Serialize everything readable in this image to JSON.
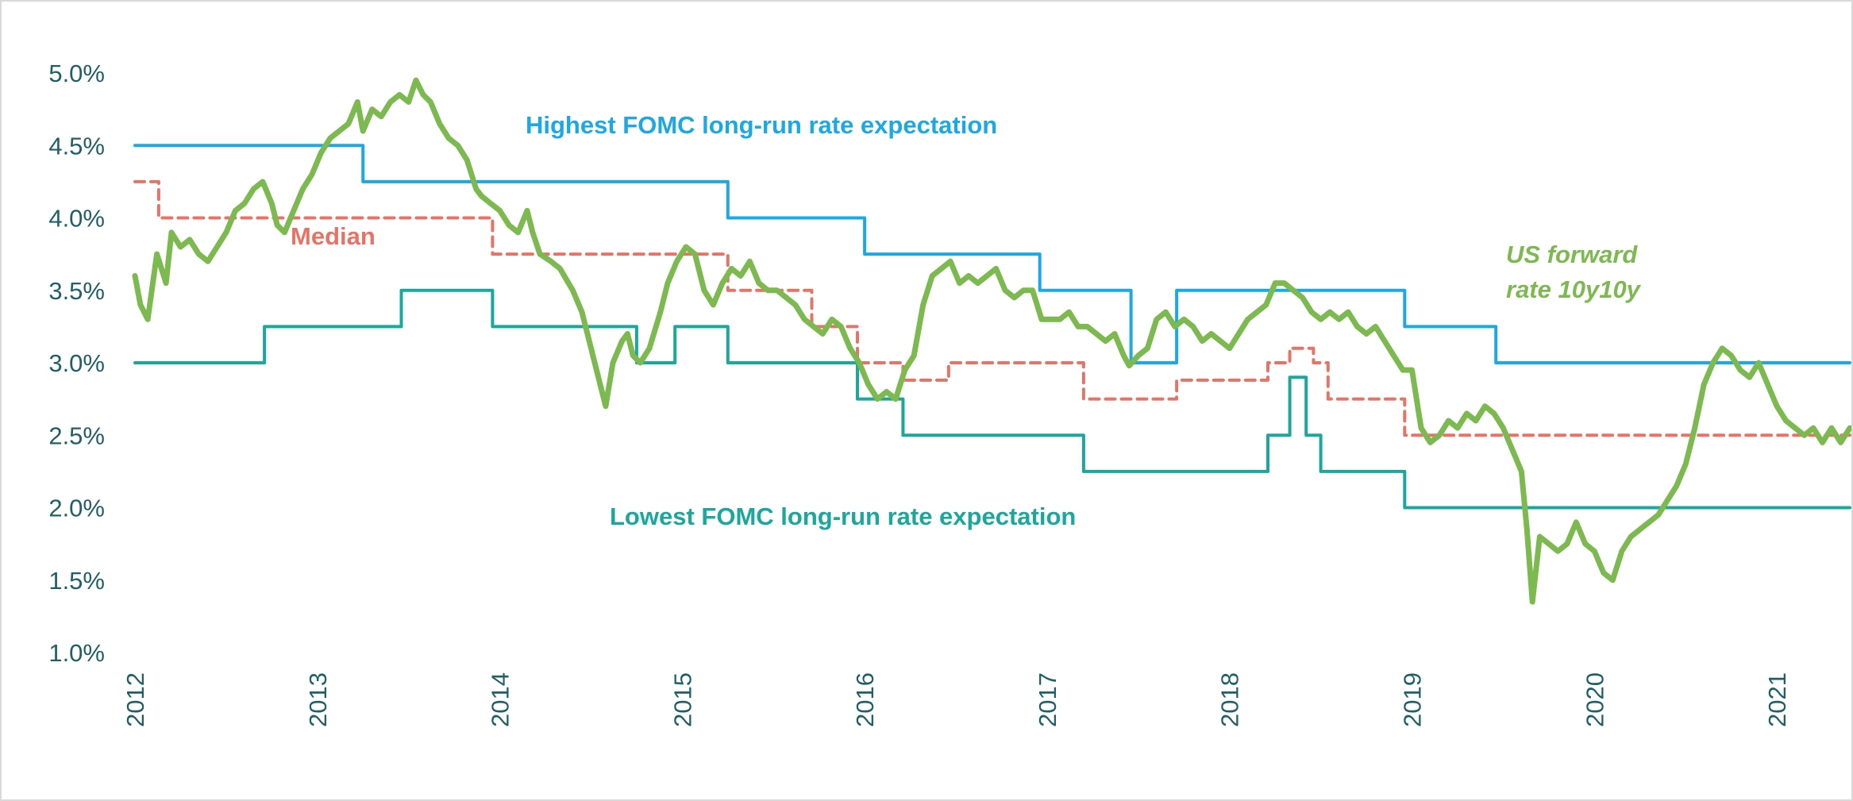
{
  "chart_data": {
    "type": "line",
    "title": "",
    "xlabel": "",
    "ylabel": "",
    "ylim": [
      1.0,
      5.0
    ],
    "xlim": [
      2012.0,
      2021.4
    ],
    "y_ticks": [
      "1.0%",
      "1.5%",
      "2.0%",
      "2.5%",
      "3.0%",
      "3.5%",
      "4.0%",
      "4.5%",
      "5.0%"
    ],
    "x_ticks": [
      "2012",
      "2013",
      "2014",
      "2015",
      "2016",
      "2017",
      "2018",
      "2019",
      "2020",
      "2021"
    ],
    "grid": false,
    "colors": {
      "highest": "#1ca8e3",
      "median": "#e67466",
      "lowest": "#1aa89c",
      "forward": "#7cb94f",
      "axis_text": "#1f5f66"
    },
    "annotations": {
      "highest": "Highest FOMC long-run rate expectation",
      "median": "Median",
      "lowest": "Lowest FOMC long-run rate expectation",
      "forward_line1": "US forward",
      "forward_line2": "rate 10y10y"
    },
    "series": [
      {
        "key": "highest",
        "style": "step",
        "points": [
          [
            2012.0,
            4.5
          ],
          [
            2013.25,
            4.5
          ],
          [
            2013.25,
            4.25
          ],
          [
            2015.25,
            4.25
          ],
          [
            2015.25,
            4.0
          ],
          [
            2016.0,
            4.0
          ],
          [
            2016.0,
            3.75
          ],
          [
            2016.96,
            3.75
          ],
          [
            2016.96,
            3.5
          ],
          [
            2017.46,
            3.5
          ],
          [
            2017.46,
            3.0
          ],
          [
            2017.71,
            3.0
          ],
          [
            2017.71,
            3.5
          ],
          [
            2018.46,
            3.5
          ],
          [
            2018.46,
            3.5
          ],
          [
            2018.96,
            3.5
          ],
          [
            2018.96,
            3.25
          ],
          [
            2019.46,
            3.25
          ],
          [
            2019.46,
            3.0
          ],
          [
            2021.4,
            3.0
          ]
        ]
      },
      {
        "key": "median",
        "style": "step",
        "points": [
          [
            2012.0,
            4.25
          ],
          [
            2012.13,
            4.25
          ],
          [
            2012.13,
            4.0
          ],
          [
            2013.96,
            4.0
          ],
          [
            2013.96,
            3.75
          ],
          [
            2015.25,
            3.75
          ],
          [
            2015.25,
            3.5
          ],
          [
            2015.71,
            3.5
          ],
          [
            2015.71,
            3.25
          ],
          [
            2015.96,
            3.25
          ],
          [
            2015.96,
            3.0
          ],
          [
            2016.21,
            3.0
          ],
          [
            2016.21,
            2.88
          ],
          [
            2016.46,
            2.88
          ],
          [
            2016.46,
            3.0
          ],
          [
            2017.2,
            3.0
          ],
          [
            2017.2,
            2.75
          ],
          [
            2017.71,
            2.75
          ],
          [
            2017.71,
            2.88
          ],
          [
            2018.21,
            2.88
          ],
          [
            2018.21,
            3.0
          ],
          [
            2018.33,
            3.0
          ],
          [
            2018.33,
            3.1
          ],
          [
            2018.46,
            3.1
          ],
          [
            2018.46,
            3.0
          ],
          [
            2018.54,
            3.0
          ],
          [
            2018.54,
            2.75
          ],
          [
            2018.96,
            2.75
          ],
          [
            2018.96,
            2.5
          ],
          [
            2021.4,
            2.5
          ]
        ]
      },
      {
        "key": "lowest",
        "style": "step",
        "points": [
          [
            2012.0,
            3.0
          ],
          [
            2012.71,
            3.0
          ],
          [
            2012.71,
            3.25
          ],
          [
            2013.46,
            3.25
          ],
          [
            2013.46,
            3.5
          ],
          [
            2013.96,
            3.5
          ],
          [
            2013.96,
            3.25
          ],
          [
            2014.75,
            3.25
          ],
          [
            2014.75,
            3.0
          ],
          [
            2014.96,
            3.0
          ],
          [
            2014.96,
            3.25
          ],
          [
            2015.25,
            3.25
          ],
          [
            2015.25,
            3.0
          ],
          [
            2015.96,
            3.0
          ],
          [
            2015.96,
            2.75
          ],
          [
            2016.21,
            2.75
          ],
          [
            2016.21,
            2.5
          ],
          [
            2017.2,
            2.5
          ],
          [
            2017.2,
            2.25
          ],
          [
            2018.21,
            2.25
          ],
          [
            2018.21,
            2.5
          ],
          [
            2018.33,
            2.5
          ],
          [
            2018.33,
            2.9
          ],
          [
            2018.42,
            2.9
          ],
          [
            2018.42,
            2.5
          ],
          [
            2018.5,
            2.5
          ],
          [
            2018.5,
            2.25
          ],
          [
            2018.96,
            2.25
          ],
          [
            2018.96,
            2.0
          ],
          [
            2021.4,
            2.0
          ]
        ]
      },
      {
        "key": "forward",
        "style": "line",
        "points": [
          [
            2012.0,
            3.6
          ],
          [
            2012.03,
            3.4
          ],
          [
            2012.07,
            3.3
          ],
          [
            2012.12,
            3.75
          ],
          [
            2012.17,
            3.55
          ],
          [
            2012.2,
            3.9
          ],
          [
            2012.25,
            3.8
          ],
          [
            2012.3,
            3.85
          ],
          [
            2012.35,
            3.75
          ],
          [
            2012.4,
            3.7
          ],
          [
            2012.45,
            3.8
          ],
          [
            2012.5,
            3.9
          ],
          [
            2012.55,
            4.05
          ],
          [
            2012.6,
            4.1
          ],
          [
            2012.65,
            4.2
          ],
          [
            2012.7,
            4.25
          ],
          [
            2012.75,
            4.1
          ],
          [
            2012.78,
            3.95
          ],
          [
            2012.82,
            3.9
          ],
          [
            2012.87,
            4.05
          ],
          [
            2012.92,
            4.2
          ],
          [
            2012.97,
            4.3
          ],
          [
            2013.02,
            4.45
          ],
          [
            2013.07,
            4.55
          ],
          [
            2013.12,
            4.6
          ],
          [
            2013.17,
            4.65
          ],
          [
            2013.22,
            4.8
          ],
          [
            2013.25,
            4.6
          ],
          [
            2013.3,
            4.75
          ],
          [
            2013.35,
            4.7
          ],
          [
            2013.4,
            4.8
          ],
          [
            2013.45,
            4.85
          ],
          [
            2013.5,
            4.8
          ],
          [
            2013.54,
            4.95
          ],
          [
            2013.58,
            4.85
          ],
          [
            2013.62,
            4.8
          ],
          [
            2013.67,
            4.65
          ],
          [
            2013.72,
            4.55
          ],
          [
            2013.77,
            4.5
          ],
          [
            2013.82,
            4.4
          ],
          [
            2013.87,
            4.2
          ],
          [
            2013.9,
            4.15
          ],
          [
            2013.95,
            4.1
          ],
          [
            2014.0,
            4.05
          ],
          [
            2014.05,
            3.95
          ],
          [
            2014.1,
            3.9
          ],
          [
            2014.15,
            4.05
          ],
          [
            2014.18,
            3.9
          ],
          [
            2014.22,
            3.75
          ],
          [
            2014.28,
            3.7
          ],
          [
            2014.33,
            3.65
          ],
          [
            2014.4,
            3.5
          ],
          [
            2014.45,
            3.35
          ],
          [
            2014.48,
            3.2
          ],
          [
            2014.52,
            3.0
          ],
          [
            2014.55,
            2.85
          ],
          [
            2014.58,
            2.7
          ],
          [
            2014.62,
            3.0
          ],
          [
            2014.67,
            3.15
          ],
          [
            2014.7,
            3.2
          ],
          [
            2014.73,
            3.05
          ],
          [
            2014.77,
            3.0
          ],
          [
            2014.82,
            3.1
          ],
          [
            2014.88,
            3.35
          ],
          [
            2014.92,
            3.55
          ],
          [
            2014.97,
            3.7
          ],
          [
            2015.02,
            3.8
          ],
          [
            2015.07,
            3.75
          ],
          [
            2015.12,
            3.5
          ],
          [
            2015.17,
            3.4
          ],
          [
            2015.22,
            3.55
          ],
          [
            2015.27,
            3.65
          ],
          [
            2015.32,
            3.6
          ],
          [
            2015.37,
            3.7
          ],
          [
            2015.42,
            3.55
          ],
          [
            2015.47,
            3.5
          ],
          [
            2015.52,
            3.5
          ],
          [
            2015.57,
            3.45
          ],
          [
            2015.62,
            3.4
          ],
          [
            2015.67,
            3.3
          ],
          [
            2015.72,
            3.25
          ],
          [
            2015.77,
            3.2
          ],
          [
            2015.82,
            3.3
          ],
          [
            2015.87,
            3.25
          ],
          [
            2015.92,
            3.1
          ],
          [
            2015.97,
            3.0
          ],
          [
            2016.02,
            2.85
          ],
          [
            2016.07,
            2.75
          ],
          [
            2016.12,
            2.8
          ],
          [
            2016.17,
            2.75
          ],
          [
            2016.22,
            2.95
          ],
          [
            2016.27,
            3.05
          ],
          [
            2016.32,
            3.4
          ],
          [
            2016.37,
            3.6
          ],
          [
            2016.42,
            3.65
          ],
          [
            2016.47,
            3.7
          ],
          [
            2016.52,
            3.55
          ],
          [
            2016.57,
            3.6
          ],
          [
            2016.62,
            3.55
          ],
          [
            2016.67,
            3.6
          ],
          [
            2016.72,
            3.65
          ],
          [
            2016.77,
            3.5
          ],
          [
            2016.82,
            3.45
          ],
          [
            2016.87,
            3.5
          ],
          [
            2016.92,
            3.5
          ],
          [
            2016.97,
            3.3
          ],
          [
            2017.02,
            3.3
          ],
          [
            2017.07,
            3.3
          ],
          [
            2017.12,
            3.35
          ],
          [
            2017.17,
            3.25
          ],
          [
            2017.22,
            3.25
          ],
          [
            2017.27,
            3.2
          ],
          [
            2017.32,
            3.15
          ],
          [
            2017.37,
            3.2
          ],
          [
            2017.42,
            3.05
          ],
          [
            2017.45,
            2.98
          ],
          [
            2017.5,
            3.05
          ],
          [
            2017.55,
            3.1
          ],
          [
            2017.6,
            3.3
          ],
          [
            2017.65,
            3.35
          ],
          [
            2017.7,
            3.25
          ],
          [
            2017.75,
            3.3
          ],
          [
            2017.8,
            3.25
          ],
          [
            2017.85,
            3.15
          ],
          [
            2017.9,
            3.2
          ],
          [
            2017.95,
            3.15
          ],
          [
            2018.0,
            3.1
          ],
          [
            2018.05,
            3.2
          ],
          [
            2018.1,
            3.3
          ],
          [
            2018.15,
            3.35
          ],
          [
            2018.2,
            3.4
          ],
          [
            2018.25,
            3.55
          ],
          [
            2018.3,
            3.55
          ],
          [
            2018.35,
            3.5
          ],
          [
            2018.4,
            3.45
          ],
          [
            2018.45,
            3.35
          ],
          [
            2018.5,
            3.3
          ],
          [
            2018.55,
            3.35
          ],
          [
            2018.6,
            3.3
          ],
          [
            2018.65,
            3.35
          ],
          [
            2018.7,
            3.25
          ],
          [
            2018.75,
            3.2
          ],
          [
            2018.8,
            3.25
          ],
          [
            2018.85,
            3.15
          ],
          [
            2018.9,
            3.05
          ],
          [
            2018.95,
            2.95
          ],
          [
            2019.0,
            2.95
          ],
          [
            2019.05,
            2.55
          ],
          [
            2019.1,
            2.45
          ],
          [
            2019.15,
            2.5
          ],
          [
            2019.2,
            2.6
          ],
          [
            2019.25,
            2.55
          ],
          [
            2019.3,
            2.65
          ],
          [
            2019.35,
            2.6
          ],
          [
            2019.4,
            2.7
          ],
          [
            2019.45,
            2.65
          ],
          [
            2019.5,
            2.55
          ],
          [
            2019.55,
            2.4
          ],
          [
            2019.6,
            2.25
          ],
          [
            2019.63,
            1.85
          ],
          [
            2019.66,
            1.35
          ],
          [
            2019.7,
            1.8
          ],
          [
            2019.75,
            1.75
          ],
          [
            2019.8,
            1.7
          ],
          [
            2019.85,
            1.75
          ],
          [
            2019.9,
            1.9
          ],
          [
            2019.95,
            1.75
          ],
          [
            2020.0,
            1.7
          ],
          [
            2020.05,
            1.55
          ],
          [
            2020.1,
            1.5
          ],
          [
            2020.15,
            1.7
          ],
          [
            2020.2,
            1.8
          ],
          [
            2020.25,
            1.85
          ],
          [
            2020.3,
            1.9
          ],
          [
            2020.35,
            1.95
          ],
          [
            2020.4,
            2.05
          ],
          [
            2020.45,
            2.15
          ],
          [
            2020.5,
            2.3
          ],
          [
            2020.55,
            2.55
          ],
          [
            2020.6,
            2.85
          ],
          [
            2020.65,
            3.0
          ],
          [
            2020.7,
            3.1
          ],
          [
            2020.75,
            3.05
          ],
          [
            2020.8,
            2.95
          ],
          [
            2020.85,
            2.9
          ],
          [
            2020.9,
            3.0
          ],
          [
            2020.95,
            2.85
          ],
          [
            2021.0,
            2.7
          ],
          [
            2021.05,
            2.6
          ],
          [
            2021.1,
            2.55
          ],
          [
            2021.15,
            2.5
          ],
          [
            2021.2,
            2.55
          ],
          [
            2021.25,
            2.45
          ],
          [
            2021.3,
            2.55
          ],
          [
            2021.35,
            2.45
          ],
          [
            2021.4,
            2.55
          ]
        ]
      }
    ]
  }
}
